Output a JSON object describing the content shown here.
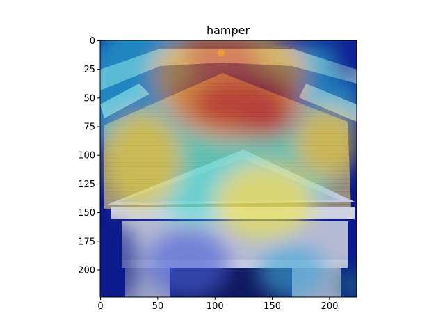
{
  "chart_data": {
    "type": "heatmap",
    "title": "hamper",
    "xlabel": "",
    "ylabel": "",
    "xlim": [
      0,
      224
    ],
    "ylim": [
      224,
      0
    ],
    "x_ticks": [
      0,
      50,
      100,
      150,
      200
    ],
    "y_ticks": [
      0,
      25,
      50,
      75,
      100,
      125,
      150,
      175,
      200
    ],
    "colormap": "jet",
    "grid": false,
    "hot_spots": [
      {
        "x": 110,
        "y": 60,
        "intensity": 1.0
      },
      {
        "x": 95,
        "y": 40,
        "intensity": 0.85
      },
      {
        "x": 135,
        "y": 70,
        "intensity": 0.9
      },
      {
        "x": 130,
        "y": 135,
        "intensity": 0.65
      },
      {
        "x": 35,
        "y": 110,
        "intensity": 0.55
      },
      {
        "x": 180,
        "y": 45,
        "intensity": 0.5
      }
    ]
  },
  "colors": {
    "background_low": "#0a1a8c",
    "mid": "#34d6d8",
    "warm": "#f2e23a",
    "hot": "#d11a14",
    "building": "#c9c3b8"
  }
}
